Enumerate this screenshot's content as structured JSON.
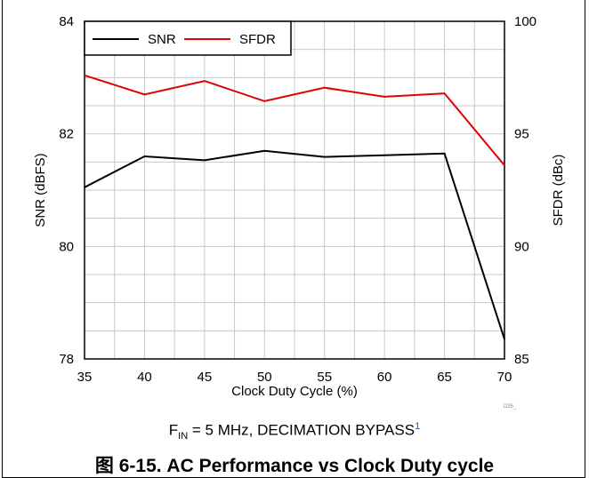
{
  "chart_data": {
    "type": "line",
    "xlabel": "Clock Duty Cycle (%)",
    "ylabel_left": "SNR (dBFS)",
    "ylabel_right": "SFDR (dBc)",
    "xlim": [
      35,
      70
    ],
    "xticks": [
      35,
      40,
      45,
      50,
      55,
      60,
      65,
      70
    ],
    "ylim_left": [
      78,
      84
    ],
    "yticks_left": [
      78,
      80,
      82,
      84
    ],
    "ylim_right": [
      85,
      100
    ],
    "yticks_right": [
      85,
      90,
      95,
      100
    ],
    "grid": true,
    "legend_placement": "top-left",
    "x": [
      35,
      40,
      45,
      50,
      55,
      60,
      65,
      70
    ],
    "series": [
      {
        "name": "SNR",
        "axis": "left",
        "color": "#000000",
        "values": [
          81.05,
          81.6,
          81.53,
          81.7,
          81.59,
          81.62,
          81.65,
          78.35
        ]
      },
      {
        "name": "SFDR",
        "axis": "right",
        "color": "#e00000",
        "values": [
          97.6,
          96.75,
          97.35,
          96.45,
          97.05,
          96.65,
          96.8,
          93.6
        ]
      }
    ]
  },
  "note": {
    "prefix": "F",
    "subscript": "IN",
    "text": " = 5 MHz, DECIMATION BYPASS",
    "superscript": "1"
  },
  "doc_ref": "D35_",
  "caption": "图 6-15. AC Performance vs Clock Duty cycle"
}
